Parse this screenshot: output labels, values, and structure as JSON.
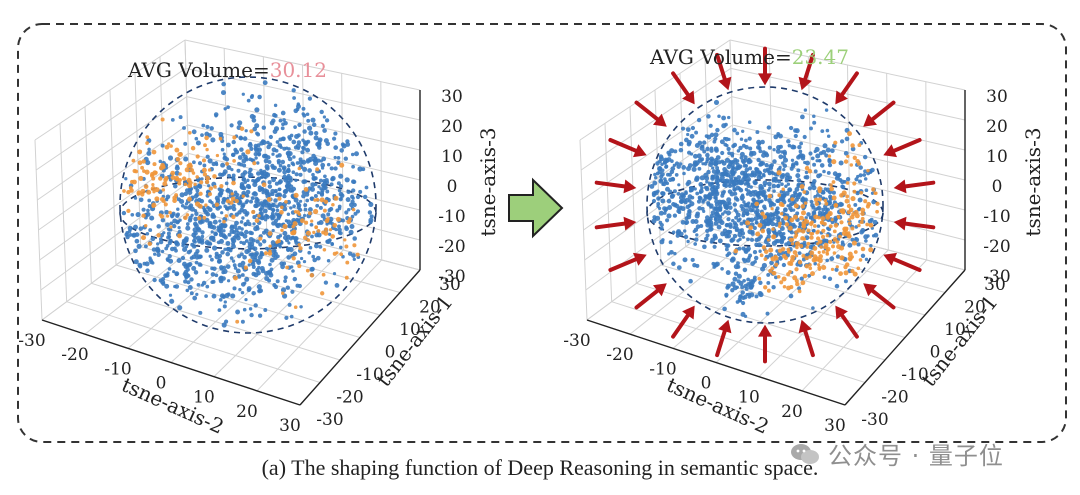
{
  "figure": {
    "caption": "(a) The shaping function of Deep Reasoning in semantic space.",
    "watermark": "公众号 · 量子位"
  },
  "colors": {
    "blue_points": "#3a7abf",
    "orange_points": "#f0963a",
    "before_value": "#e8909a",
    "after_value": "#9cd07a",
    "arrow_fill": "#9dcf7b",
    "pressure_arrows": "#b3141a",
    "sphere": "#1f3b6b"
  },
  "chart_data": [
    {
      "type": "scatter",
      "subtype": "3d-scatter",
      "title_label": "AVG Volume=",
      "title_value": "30.12",
      "xlabel": "tsne-axis-2",
      "ylabel": "tsne-axis-1",
      "zlabel": "tsne-axis-3",
      "x_ticks": [
        "-30",
        "-20",
        "-10",
        "0",
        "10",
        "20",
        "30"
      ],
      "y_ticks": [
        "30",
        "20",
        "10",
        "0",
        "-10",
        "-20",
        "-30"
      ],
      "z_ticks": [
        "30",
        "20",
        "10",
        "0",
        "-10",
        "-20",
        "-30"
      ],
      "xlim": [
        -30,
        30
      ],
      "ylim": [
        -30,
        30
      ],
      "zlim": [
        -30,
        30
      ],
      "grid": true,
      "series": [
        {
          "color": "#3a7abf",
          "approx_count": 1500,
          "spread": "broad"
        },
        {
          "color": "#f0963a",
          "approx_count": 260,
          "spread": "upper-left"
        }
      ]
    },
    {
      "type": "scatter",
      "subtype": "3d-scatter",
      "title_label": "AVG Volume=",
      "title_value": "23.47",
      "xlabel": "tsne-axis-2",
      "ylabel": "tsne-axis-1",
      "zlabel": "tsne-axis-3",
      "x_ticks": [
        "-30",
        "-20",
        "-10",
        "0",
        "10",
        "20",
        "30"
      ],
      "y_ticks": [
        "30",
        "20",
        "10",
        "0",
        "-10",
        "-20",
        "-30"
      ],
      "z_ticks": [
        "30",
        "20",
        "10",
        "0",
        "-10",
        "-20",
        "-30"
      ],
      "xlim": [
        -30,
        30
      ],
      "ylim": [
        -30,
        30
      ],
      "zlim": [
        -30,
        30
      ],
      "grid": true,
      "series": [
        {
          "color": "#3a7abf",
          "approx_count": 1500,
          "spread": "compact"
        },
        {
          "color": "#f0963a",
          "approx_count": 260,
          "spread": "lower-right"
        }
      ]
    }
  ]
}
